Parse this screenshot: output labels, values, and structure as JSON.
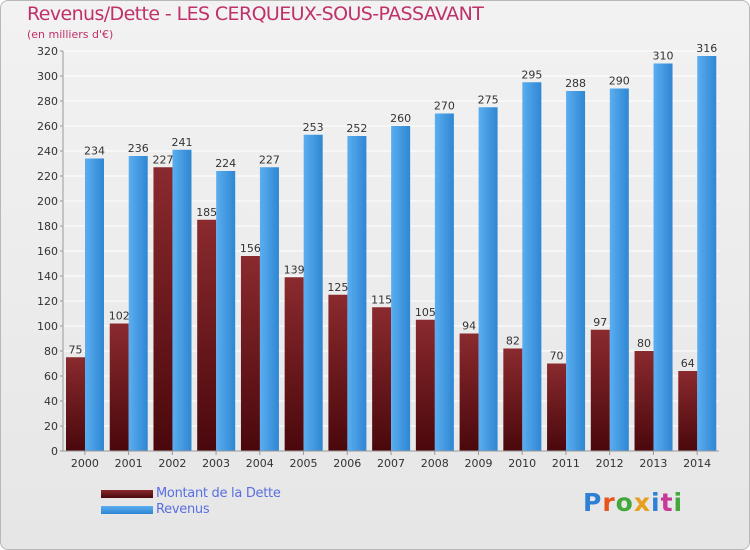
{
  "header": {
    "title": "Revenus/Dette - LES CERQUEUX-SOUS-PASSAVANT",
    "subtitle": "(en milliers d'€)"
  },
  "legend": {
    "items": [
      {
        "label": "Montant de la Dette",
        "color": "#7a1c22"
      },
      {
        "label": "Revenus",
        "color": "#4da3e8"
      }
    ]
  },
  "logo": {
    "text": "Proxiti",
    "colors": [
      "#2e7fd6",
      "#e8541c",
      "#43a83a",
      "#e8a01c",
      "#2e7fd6",
      "#c83a9a",
      "#43a83a"
    ]
  },
  "colors": {
    "debt_top": "#8a2a2e",
    "debt_bottom": "#4a080c",
    "rev_top": "#5aaef0",
    "rev_bottom": "#2f86d2",
    "grid": "#ffffff",
    "text": "#333333"
  },
  "chart_data": {
    "type": "bar",
    "categories": [
      "2000",
      "2001",
      "2002",
      "2003",
      "2004",
      "2005",
      "2006",
      "2007",
      "2008",
      "2009",
      "2010",
      "2011",
      "2012",
      "2013",
      "2014"
    ],
    "series": [
      {
        "name": "Montant de la Dette",
        "values": [
          75,
          102,
          227,
          185,
          156,
          139,
          125,
          115,
          105,
          94,
          82,
          70,
          97,
          80,
          64
        ]
      },
      {
        "name": "Revenus",
        "values": [
          234,
          236,
          241,
          224,
          227,
          253,
          252,
          260,
          270,
          275,
          295,
          288,
          290,
          310,
          316
        ]
      }
    ],
    "ylim": [
      0,
      320
    ],
    "yticks": [
      0,
      20,
      40,
      60,
      80,
      100,
      120,
      140,
      160,
      180,
      200,
      220,
      240,
      260,
      280,
      300,
      320
    ],
    "grid": true,
    "legend_position": "bottom-left"
  }
}
